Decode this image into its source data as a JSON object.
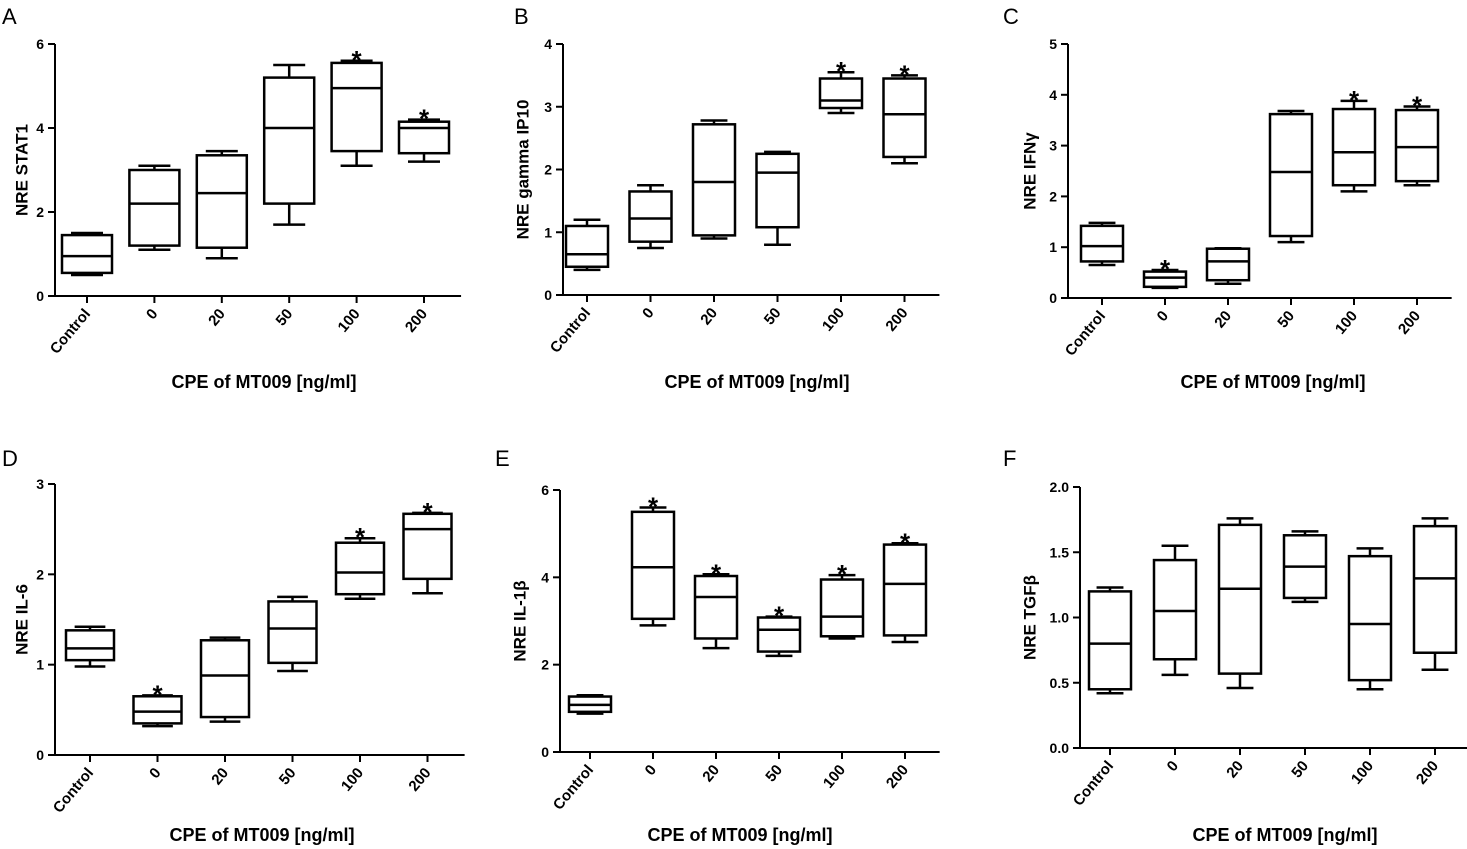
{
  "figure": {
    "background": "#ffffff",
    "line_color": "#000000"
  },
  "chart_data": [
    {
      "id": "A",
      "type": "box",
      "letter": "A",
      "ylabel": "NRE STAT1",
      "xlabel": "CPE of MT009 [ng/ml]",
      "ylim": [
        0,
        6
      ],
      "yticks": [
        0,
        2,
        4,
        6
      ],
      "ytick_labels": [
        "0",
        "2",
        "4",
        "6"
      ],
      "categories": [
        "Control",
        "0",
        "20",
        "50",
        "100",
        "200"
      ],
      "boxes": [
        {
          "min": 0.5,
          "q1": 0.55,
          "median": 0.95,
          "q3": 1.45,
          "max": 1.5
        },
        {
          "min": 1.1,
          "q1": 1.2,
          "median": 2.2,
          "q3": 3.0,
          "max": 3.1
        },
        {
          "min": 0.9,
          "q1": 1.15,
          "median": 2.45,
          "q3": 3.35,
          "max": 3.45
        },
        {
          "min": 1.7,
          "q1": 2.2,
          "median": 4.0,
          "q3": 5.2,
          "max": 5.5
        },
        {
          "min": 3.1,
          "q1": 3.45,
          "median": 4.95,
          "q3": 5.55,
          "max": 5.6
        },
        {
          "min": 3.2,
          "q1": 3.4,
          "median": 4.0,
          "q3": 4.15,
          "max": 4.2
        }
      ],
      "significance": [
        "",
        "",
        "",
        "",
        "*",
        "*"
      ]
    },
    {
      "id": "B",
      "type": "box",
      "letter": "B",
      "ylabel": "NRE gamma IP10",
      "xlabel": "CPE of MT009 [ng/ml]",
      "ylim": [
        0,
        4
      ],
      "yticks": [
        0,
        1,
        2,
        3,
        4
      ],
      "ytick_labels": [
        "0",
        "1",
        "2",
        "3",
        "4"
      ],
      "categories": [
        "Control",
        "0",
        "20",
        "50",
        "100",
        "200"
      ],
      "boxes": [
        {
          "min": 0.4,
          "q1": 0.45,
          "median": 0.65,
          "q3": 1.1,
          "max": 1.2
        },
        {
          "min": 0.75,
          "q1": 0.85,
          "median": 1.22,
          "q3": 1.65,
          "max": 1.75
        },
        {
          "min": 0.9,
          "q1": 0.95,
          "median": 1.8,
          "q3": 2.72,
          "max": 2.78
        },
        {
          "min": 0.8,
          "q1": 1.08,
          "median": 1.95,
          "q3": 2.25,
          "max": 2.28
        },
        {
          "min": 2.9,
          "q1": 2.98,
          "median": 3.1,
          "q3": 3.45,
          "max": 3.55
        },
        {
          "min": 2.1,
          "q1": 2.2,
          "median": 2.88,
          "q3": 3.45,
          "max": 3.5
        }
      ],
      "significance": [
        "",
        "",
        "",
        "",
        "*",
        "*"
      ]
    },
    {
      "id": "C",
      "type": "box",
      "letter": "C",
      "ylabel": "NRE IFNγ",
      "xlabel": "CPE of MT009 [ng/ml]",
      "ylim": [
        0,
        5
      ],
      "yticks": [
        0,
        1,
        2,
        3,
        4,
        5
      ],
      "ytick_labels": [
        "0",
        "1",
        "2",
        "3",
        "4",
        "5"
      ],
      "categories": [
        "Control",
        "0",
        "20",
        "50",
        "100",
        "200"
      ],
      "boxes": [
        {
          "min": 0.65,
          "q1": 0.72,
          "median": 1.02,
          "q3": 1.42,
          "max": 1.48
        },
        {
          "min": 0.2,
          "q1": 0.22,
          "median": 0.4,
          "q3": 0.52,
          "max": 0.55
        },
        {
          "min": 0.28,
          "q1": 0.35,
          "median": 0.72,
          "q3": 0.97,
          "max": 0.98
        },
        {
          "min": 1.1,
          "q1": 1.22,
          "median": 2.48,
          "q3": 3.62,
          "max": 3.68
        },
        {
          "min": 2.1,
          "q1": 2.22,
          "median": 2.87,
          "q3": 3.72,
          "max": 3.88
        },
        {
          "min": 2.22,
          "q1": 2.3,
          "median": 2.97,
          "q3": 3.7,
          "max": 3.77
        }
      ],
      "significance": [
        "",
        "*",
        "",
        "",
        "*",
        "*"
      ]
    },
    {
      "id": "D",
      "type": "box",
      "letter": "D",
      "ylabel": "NRE IL-6",
      "xlabel": "CPE of MT009 [ng/ml]",
      "ylim": [
        0,
        3
      ],
      "yticks": [
        0,
        1,
        2,
        3
      ],
      "ytick_labels": [
        "0",
        "1",
        "2",
        "3"
      ],
      "categories": [
        "Control",
        "0",
        "20",
        "50",
        "100",
        "200"
      ],
      "boxes": [
        {
          "min": 0.98,
          "q1": 1.05,
          "median": 1.18,
          "q3": 1.38,
          "max": 1.42
        },
        {
          "min": 0.32,
          "q1": 0.35,
          "median": 0.48,
          "q3": 0.65,
          "max": 0.66
        },
        {
          "min": 0.37,
          "q1": 0.42,
          "median": 0.88,
          "q3": 1.27,
          "max": 1.3
        },
        {
          "min": 0.93,
          "q1": 1.02,
          "median": 1.4,
          "q3": 1.7,
          "max": 1.75
        },
        {
          "min": 1.73,
          "q1": 1.78,
          "median": 2.02,
          "q3": 2.35,
          "max": 2.4
        },
        {
          "min": 1.79,
          "q1": 1.95,
          "median": 2.5,
          "q3": 2.67,
          "max": 2.68
        }
      ],
      "significance": [
        "",
        "*",
        "",
        "",
        "*",
        "*"
      ]
    },
    {
      "id": "E",
      "type": "box",
      "letter": "E",
      "ylabel": "NRE IL-1β",
      "xlabel": "CPE of MT009 [ng/ml]",
      "ylim": [
        0,
        6
      ],
      "yticks": [
        0,
        2,
        4,
        6
      ],
      "ytick_labels": [
        "0",
        "2",
        "4",
        "6"
      ],
      "categories": [
        "Control",
        "0",
        "20",
        "50",
        "100",
        "200"
      ],
      "boxes": [
        {
          "min": 0.88,
          "q1": 0.92,
          "median": 1.08,
          "q3": 1.27,
          "max": 1.3
        },
        {
          "min": 2.9,
          "q1": 3.05,
          "median": 4.23,
          "q3": 5.5,
          "max": 5.6
        },
        {
          "min": 2.38,
          "q1": 2.6,
          "median": 3.55,
          "q3": 4.03,
          "max": 4.07
        },
        {
          "min": 2.2,
          "q1": 2.3,
          "median": 2.8,
          "q3": 3.08,
          "max": 3.1
        },
        {
          "min": 2.6,
          "q1": 2.65,
          "median": 3.1,
          "q3": 3.95,
          "max": 4.05
        },
        {
          "min": 2.52,
          "q1": 2.67,
          "median": 3.85,
          "q3": 4.75,
          "max": 4.78
        }
      ],
      "significance": [
        "",
        "*",
        "*",
        "*",
        "*",
        "*"
      ]
    },
    {
      "id": "F",
      "type": "box",
      "letter": "F",
      "ylabel": "NRE TGFβ",
      "xlabel": "CPE of MT009 [ng/ml]",
      "ylim": [
        0,
        2
      ],
      "yticks": [
        0,
        0.5,
        1,
        1.5,
        2
      ],
      "ytick_labels": [
        "0.0",
        "0.5",
        "1.0",
        "1.5",
        "2.0"
      ],
      "categories": [
        "Control",
        "0",
        "20",
        "50",
        "100",
        "200"
      ],
      "boxes": [
        {
          "min": 0.42,
          "q1": 0.45,
          "median": 0.8,
          "q3": 1.2,
          "max": 1.23
        },
        {
          "min": 0.56,
          "q1": 0.68,
          "median": 1.05,
          "q3": 1.44,
          "max": 1.55
        },
        {
          "min": 0.46,
          "q1": 0.57,
          "median": 1.22,
          "q3": 1.71,
          "max": 1.76
        },
        {
          "min": 1.12,
          "q1": 1.15,
          "median": 1.39,
          "q3": 1.63,
          "max": 1.66
        },
        {
          "min": 0.45,
          "q1": 0.52,
          "median": 0.95,
          "q3": 1.47,
          "max": 1.53
        },
        {
          "min": 0.6,
          "q1": 0.73,
          "median": 1.3,
          "q3": 1.7,
          "max": 1.76
        }
      ],
      "significance": [
        "",
        "",
        "",
        "",
        "",
        ""
      ]
    }
  ]
}
